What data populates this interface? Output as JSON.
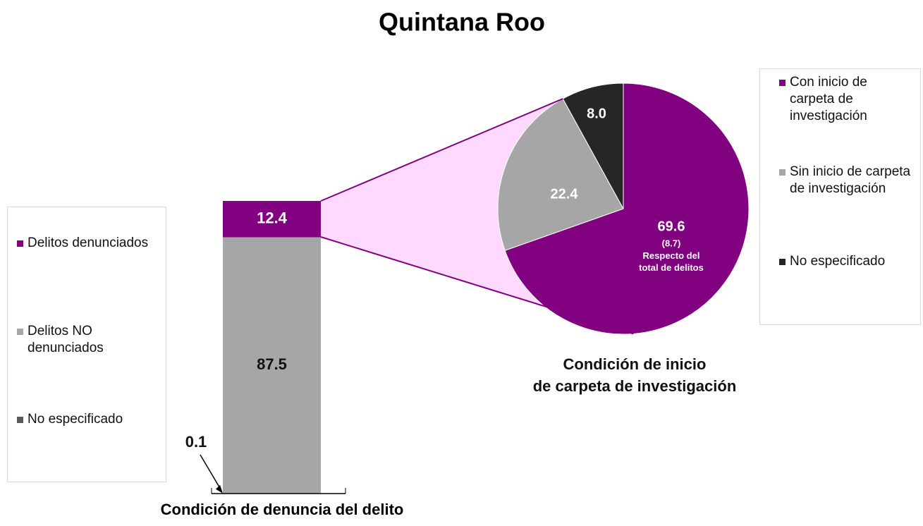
{
  "title": "Quintana Roo",
  "chart_data": [
    {
      "type": "bar",
      "xlabel": "Condición de denuncia del delito",
      "series": [
        {
          "name": "Delitos denunciados",
          "color": "#800080",
          "values": [
            12.4
          ]
        },
        {
          "name": "Delitos NO denunciados",
          "color": "#a6a6a6",
          "values": [
            87.5
          ]
        },
        {
          "name": "No especificado",
          "color": "#595959",
          "values": [
            0.1
          ]
        }
      ],
      "ylim": [
        0,
        100
      ]
    },
    {
      "type": "pie",
      "title": [
        "Condición de inicio",
        "de carpeta de investigación"
      ],
      "categories": [
        "Con inicio de carpeta de investigación",
        "Sin inicio de carpeta de investigación",
        "No especificado"
      ],
      "values": [
        69.6,
        22.4,
        8.0
      ],
      "value_labels": [
        "69.6",
        "22.4",
        "8.0"
      ],
      "colors": [
        "#800080",
        "#a6a6a6",
        "#262626"
      ],
      "note": {
        "value": 8.7,
        "label": "(8.7)",
        "text": "Respecto del total de delitos"
      }
    }
  ]
}
